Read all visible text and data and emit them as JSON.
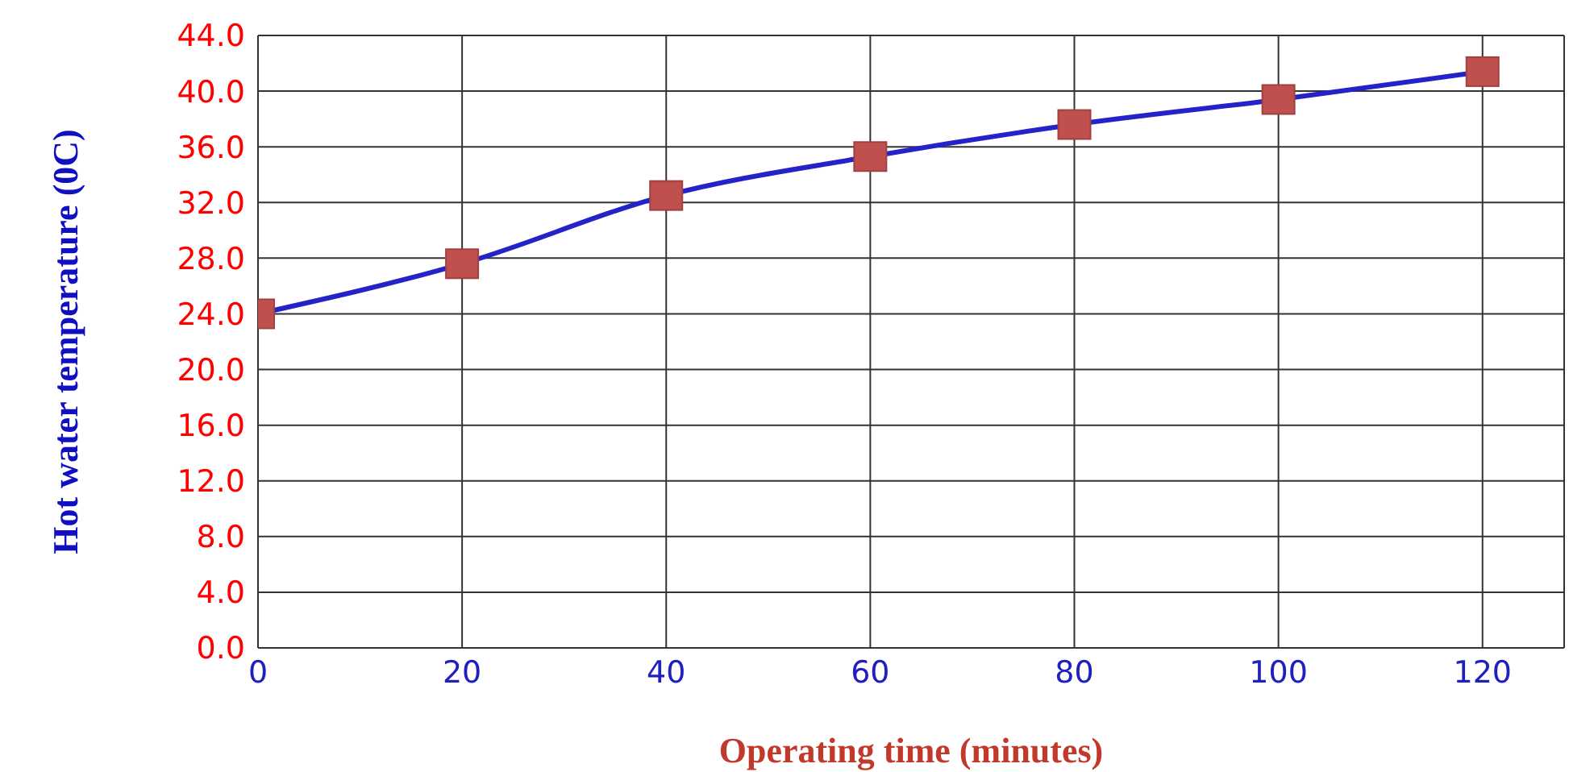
{
  "chart_data": {
    "type": "line",
    "xlabel": "Operating time (minutes)",
    "ylabel": "Hot water temperature (0C)",
    "x": [
      0,
      20,
      40,
      60,
      80,
      100,
      120
    ],
    "series": [
      {
        "color": "#2323c8",
        "values": [
          24.0,
          27.6,
          32.5,
          35.3,
          37.6,
          39.4,
          41.4
        ]
      }
    ],
    "xlim": [
      0,
      128
    ],
    "xticks": [
      0,
      20,
      40,
      60,
      80,
      100,
      120
    ],
    "ylim": [
      0,
      44
    ],
    "yticks": [
      {
        "value": 0,
        "label": "0.0"
      },
      {
        "value": 4,
        "label": "4.0"
      },
      {
        "value": 8,
        "label": "8.0"
      },
      {
        "value": 12,
        "label": "12.0"
      },
      {
        "value": 16,
        "label": "16.0"
      },
      {
        "value": 20,
        "label": "20.0"
      },
      {
        "value": 24,
        "label": "24.0"
      },
      {
        "value": 28,
        "label": "28.0"
      },
      {
        "value": 32,
        "label": "32.0"
      },
      {
        "value": 36,
        "label": "36.0"
      },
      {
        "value": 40,
        "label": "40.0"
      },
      {
        "value": 44,
        "label": "44.0"
      }
    ],
    "grid": true,
    "marker": "square",
    "line_style": "solid",
    "legend": false
  }
}
